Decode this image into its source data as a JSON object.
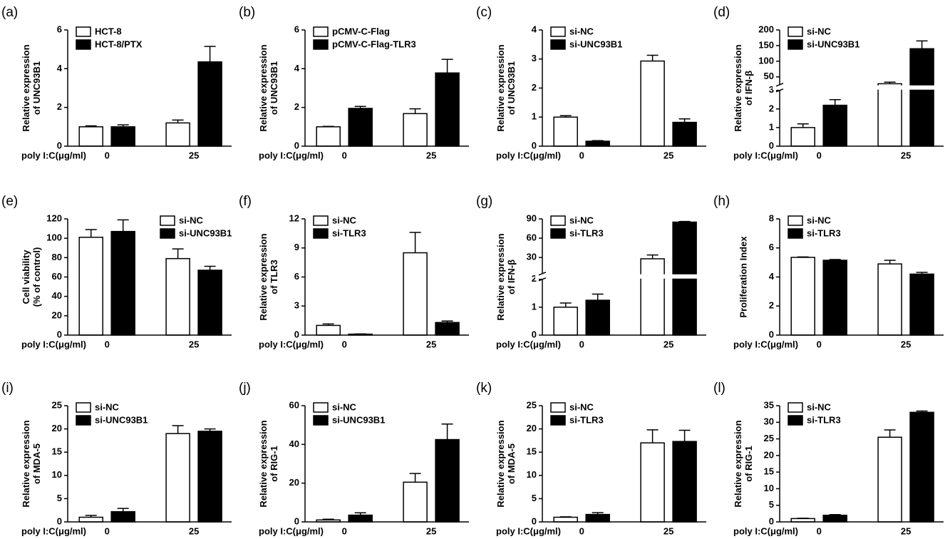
{
  "chart_data": [
    {
      "type": "bar",
      "panel": "(a)",
      "ylabel": [
        "Relative expression",
        "of UNC93B1"
      ],
      "xlabel": "poly I:C(μg/ml)",
      "categories": [
        "0",
        "25"
      ],
      "ylim": [
        0,
        6
      ],
      "yticks": [
        0,
        2,
        4,
        6
      ],
      "legend": "upper left",
      "series": [
        {
          "name": "HCT-8",
          "color": "#ffffff",
          "values": [
            1.0,
            1.2
          ],
          "errors": [
            0.05,
            0.15
          ]
        },
        {
          "name": "HCT-8/PTX",
          "color": "#000000",
          "values": [
            1.0,
            4.35
          ],
          "errors": [
            0.1,
            0.8
          ]
        }
      ]
    },
    {
      "type": "bar",
      "panel": "(b)",
      "ylabel": [
        "Relative expression",
        "of UNC93B1"
      ],
      "xlabel": "poly I:C(μg/ml)",
      "categories": [
        "0",
        "25"
      ],
      "ylim": [
        0,
        6
      ],
      "yticks": [
        0,
        2,
        4,
        6
      ],
      "legend": "upper left",
      "series": [
        {
          "name": "pCMV-C-Flag",
          "color": "#ffffff",
          "values": [
            1.0,
            1.68
          ],
          "errors": [
            0.02,
            0.25
          ]
        },
        {
          "name": "pCMV-C-Flag-TLR3",
          "color": "#000000",
          "values": [
            1.95,
            3.78
          ],
          "errors": [
            0.1,
            0.7
          ]
        }
      ]
    },
    {
      "type": "bar",
      "panel": "(c)",
      "ylabel": [
        "Relative expression",
        "of UNC93B1"
      ],
      "xlabel": "poly I:C(μg/ml)",
      "categories": [
        "0",
        "25"
      ],
      "ylim": [
        0,
        4
      ],
      "yticks": [
        0,
        1,
        2,
        3,
        4
      ],
      "legend": "upper left",
      "series": [
        {
          "name": "si-NC",
          "color": "#ffffff",
          "values": [
            1.0,
            2.93
          ],
          "errors": [
            0.05,
            0.2
          ]
        },
        {
          "name": "si-UNC93B1",
          "color": "#000000",
          "values": [
            0.17,
            0.82
          ],
          "errors": [
            0.02,
            0.12
          ]
        }
      ]
    },
    {
      "type": "bar",
      "panel": "(d)",
      "ylabel": [
        "Relative expression",
        "of IFN-β"
      ],
      "xlabel": "poly I:C(μg/ml)",
      "categories": [
        "0",
        "25"
      ],
      "ylim": [
        0,
        200
      ],
      "axis_break": [
        3,
        25
      ],
      "yticks": [
        0,
        1,
        2,
        3,
        50,
        100,
        150,
        200
      ],
      "legend": "upper left",
      "series": [
        {
          "name": "si-NC",
          "color": "#ffffff",
          "values": [
            1.0,
            28
          ],
          "errors": [
            0.2,
            5
          ]
        },
        {
          "name": "si-UNC93B1",
          "color": "#000000",
          "values": [
            2.2,
            140
          ],
          "errors": [
            0.3,
            25
          ]
        }
      ]
    },
    {
      "type": "bar",
      "panel": "(e)",
      "ylabel": [
        "Cell viability",
        "(% of control)"
      ],
      "xlabel": "poly I:C(μg/ml)",
      "categories": [
        "0",
        "25"
      ],
      "ylim": [
        0,
        120
      ],
      "yticks": [
        0,
        20,
        40,
        60,
        80,
        100,
        120
      ],
      "legend": "upper right",
      "series": [
        {
          "name": "si-NC",
          "color": "#ffffff",
          "values": [
            101,
            79
          ],
          "errors": [
            8,
            10
          ]
        },
        {
          "name": "si-UNC93B1",
          "color": "#000000",
          "values": [
            107,
            67
          ],
          "errors": [
            12,
            4
          ]
        }
      ]
    },
    {
      "type": "bar",
      "panel": "(f)",
      "ylabel": [
        "Relative expression",
        "of TLR3"
      ],
      "xlabel": "poly I:C(μg/ml)",
      "categories": [
        "0",
        "25"
      ],
      "ylim": [
        0,
        12
      ],
      "yticks": [
        0,
        3,
        6,
        9,
        12
      ],
      "legend": "upper left",
      "series": [
        {
          "name": "si-NC",
          "color": "#ffffff",
          "values": [
            1.0,
            8.5
          ],
          "errors": [
            0.15,
            2.1
          ]
        },
        {
          "name": "si-TLR3",
          "color": "#000000",
          "values": [
            0.1,
            1.3
          ],
          "errors": [
            0.02,
            0.15
          ]
        }
      ]
    },
    {
      "type": "bar",
      "panel": "(g)",
      "ylabel": [
        "Relative expression",
        "of IFN-β"
      ],
      "xlabel": "poly I:C(μg/ml)",
      "categories": [
        "0",
        "25"
      ],
      "ylim": [
        0,
        90
      ],
      "axis_break": [
        2,
        5
      ],
      "yticks": [
        0,
        1,
        2,
        30,
        60,
        90
      ],
      "legend": "upper left",
      "series": [
        {
          "name": "si-NC",
          "color": "#ffffff",
          "values": [
            1.0,
            28
          ],
          "errors": [
            0.15,
            6
          ]
        },
        {
          "name": "si-TLR3",
          "color": "#000000",
          "values": [
            1.25,
            85
          ],
          "errors": [
            0.22,
            1
          ]
        }
      ]
    },
    {
      "type": "bar",
      "panel": "(h)",
      "ylabel": [
        "Proliferation Index"
      ],
      "xlabel": "poly I:C(μg/ml)",
      "categories": [
        "0",
        "25"
      ],
      "ylim": [
        0,
        8
      ],
      "yticks": [
        0,
        2,
        4,
        6,
        8
      ],
      "legend": "upper left",
      "series": [
        {
          "name": "si-NC",
          "color": "#ffffff",
          "values": [
            5.35,
            4.9
          ],
          "errors": [
            0.03,
            0.25
          ]
        },
        {
          "name": "si-TLR3",
          "color": "#000000",
          "values": [
            5.15,
            4.2
          ],
          "errors": [
            0.05,
            0.12
          ]
        }
      ]
    },
    {
      "type": "bar",
      "panel": "(i)",
      "ylabel": [
        "Relative expression",
        "of MDA-5"
      ],
      "xlabel": "poly I:C(μg/ml)",
      "categories": [
        "0",
        "25"
      ],
      "ylim": [
        0,
        25
      ],
      "yticks": [
        0,
        5,
        10,
        15,
        20,
        25
      ],
      "legend": "upper left",
      "series": [
        {
          "name": "si-NC",
          "color": "#ffffff",
          "values": [
            1.0,
            19
          ],
          "errors": [
            0.4,
            1.7
          ]
        },
        {
          "name": "si-UNC93B1",
          "color": "#000000",
          "values": [
            2.2,
            19.5
          ],
          "errors": [
            0.7,
            0.5
          ]
        }
      ]
    },
    {
      "type": "bar",
      "panel": "(j)",
      "ylabel": [
        "Relative expression",
        "of RIG-1"
      ],
      "xlabel": "poly I:C(μg/ml)",
      "categories": [
        "0",
        "25"
      ],
      "ylim": [
        0,
        60
      ],
      "yticks": [
        0,
        20,
        40,
        60
      ],
      "legend": "upper left",
      "series": [
        {
          "name": "si-NC",
          "color": "#ffffff",
          "values": [
            1.0,
            20.5
          ],
          "errors": [
            0.4,
            4.5
          ]
        },
        {
          "name": "si-UNC93B1",
          "color": "#000000",
          "values": [
            3.5,
            42.5
          ],
          "errors": [
            1.2,
            8
          ]
        }
      ]
    },
    {
      "type": "bar",
      "panel": "(k)",
      "ylabel": [
        "Relative expression",
        "of MDA-5"
      ],
      "xlabel": "poly I:C(μg/ml)",
      "categories": [
        "0",
        "25"
      ],
      "ylim": [
        0,
        25
      ],
      "yticks": [
        0,
        5,
        10,
        15,
        20,
        25
      ],
      "legend": "upper left",
      "series": [
        {
          "name": "si-NC",
          "color": "#ffffff",
          "values": [
            1.0,
            17
          ],
          "errors": [
            0.1,
            2.8
          ]
        },
        {
          "name": "si-TLR3",
          "color": "#000000",
          "values": [
            1.6,
            17.3
          ],
          "errors": [
            0.4,
            2.4
          ]
        }
      ]
    },
    {
      "type": "bar",
      "panel": "(l)",
      "ylabel": [
        "Relative expression",
        "of RIG-1"
      ],
      "xlabel": "poly I:C(μg/ml)",
      "categories": [
        "0",
        "25"
      ],
      "ylim": [
        0,
        35
      ],
      "yticks": [
        0,
        5,
        10,
        15,
        20,
        25,
        30,
        35
      ],
      "legend": "upper left",
      "series": [
        {
          "name": "si-NC",
          "color": "#ffffff",
          "values": [
            1.0,
            25.5
          ],
          "errors": [
            0.1,
            2.2
          ]
        },
        {
          "name": "si-TLR3",
          "color": "#000000",
          "values": [
            2.0,
            33
          ],
          "errors": [
            0.2,
            0.4
          ]
        }
      ]
    }
  ]
}
